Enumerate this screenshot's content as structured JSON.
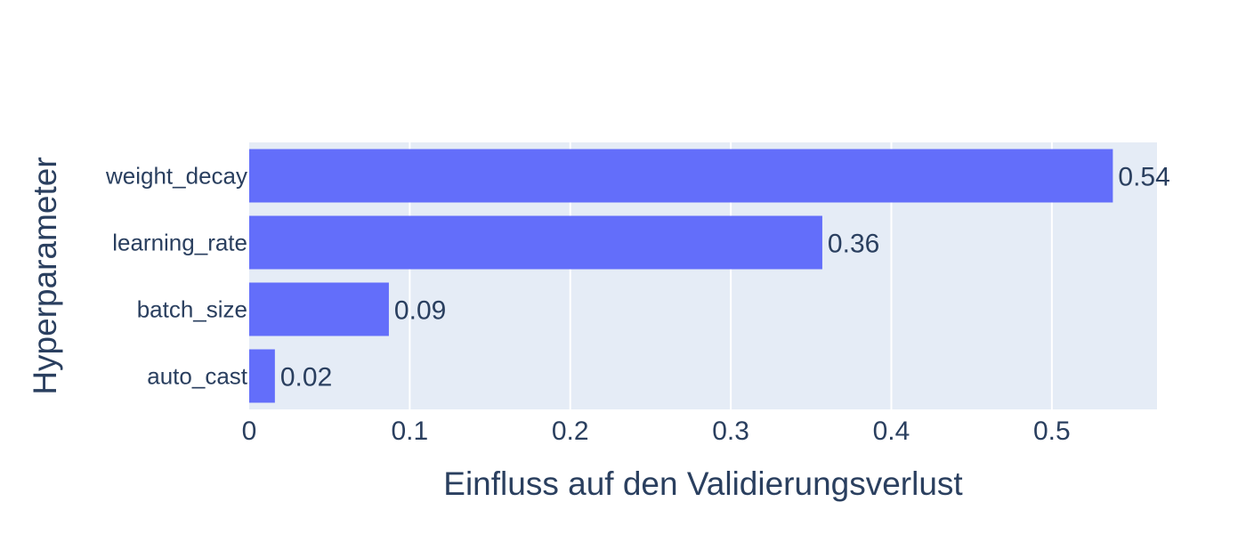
{
  "chart_data": {
    "type": "bar",
    "orientation": "horizontal",
    "title": "",
    "xlabel": "Einfluss auf den Validierungsverlust",
    "ylabel": "Hyperparameter",
    "xlim": [
      0,
      0.5655
    ],
    "xticks": [
      0,
      0.1,
      0.2,
      0.3,
      0.4,
      0.5
    ],
    "xtick_labels": [
      "0",
      "0.1",
      "0.2",
      "0.3",
      "0.4",
      "0.5"
    ],
    "grid": true,
    "bar_color": "#636efa",
    "plot_background": "#e5ecf6",
    "text_color": "#2a3f5f",
    "categories": [
      "weight_decay",
      "learning_rate",
      "batch_size",
      "auto_cast"
    ],
    "values": [
      0.538,
      0.357,
      0.087,
      0.016
    ],
    "value_labels": [
      "0.54",
      "0.36",
      "0.09",
      "0.02"
    ]
  }
}
